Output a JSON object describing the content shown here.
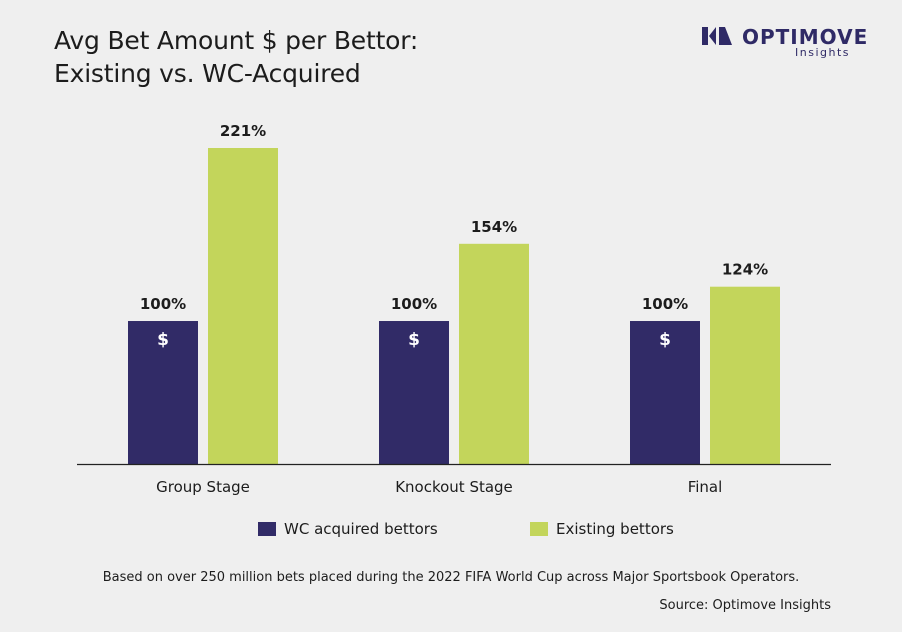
{
  "title_lines": [
    "Avg Bet Amount $ per Bettor:",
    "Existing vs. WC-Acquired"
  ],
  "logo": {
    "word": "OPTIMOVE",
    "sub": "Insights",
    "color": "#2f2a66"
  },
  "chart_data": {
    "type": "bar",
    "categories": [
      "Group Stage",
      "Knockout Stage",
      "Final"
    ],
    "series": [
      {
        "name": "WC acquired bettors",
        "values": [
          100,
          100,
          100
        ],
        "labels": [
          "100%",
          "100%",
          "100%"
        ],
        "color": "#312b67",
        "bar_text": "$"
      },
      {
        "name": "Existing bettors",
        "values": [
          221,
          154,
          124
        ],
        "labels": [
          "221%",
          "154%",
          "124%"
        ],
        "color": "#c3d55b"
      }
    ],
    "ylim": [
      0,
      221
    ],
    "grid": false,
    "legend_position": "bottom"
  },
  "footnote": "Based on over 250 million bets placed during the 2022 FIFA World Cup across Major Sportsbook Operators.",
  "source": "Source: Optimove Insights"
}
